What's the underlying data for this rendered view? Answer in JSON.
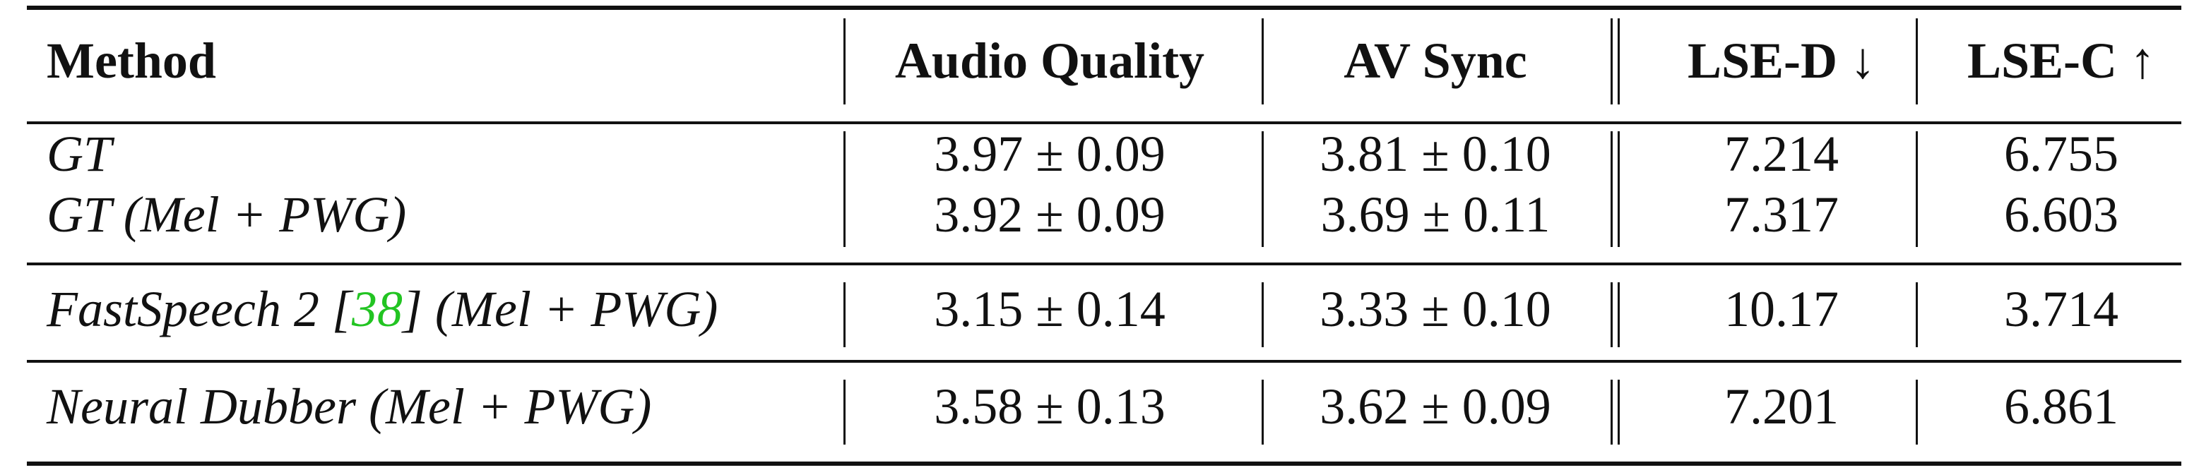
{
  "table": {
    "headers": [
      "Method",
      "Audio Quality",
      "AV Sync",
      "LSE-D ↓",
      "LSE-C ↑"
    ],
    "groups": [
      {
        "rows": [
          {
            "method": "GT",
            "audio_quality": "3.97 ± 0.09",
            "av_sync": "3.81 ± 0.10",
            "lse_d": "7.214",
            "lse_c": "6.755"
          },
          {
            "method": "GT (Mel + PWG)",
            "audio_quality": "3.92 ± 0.09",
            "av_sync": "3.69 ± 0.11",
            "lse_d": "7.317",
            "lse_c": "6.603"
          }
        ]
      },
      {
        "rows": [
          {
            "method_prefix": "FastSpeech 2 [",
            "citation": "38",
            "method_suffix": "] (Mel + PWG)",
            "audio_quality": "3.15 ± 0.14",
            "av_sync": "3.33 ± 0.10",
            "lse_d": "10.17",
            "lse_c": "3.714"
          }
        ]
      },
      {
        "rows": [
          {
            "method": "Neural Dubber (Mel + PWG)",
            "audio_quality": "3.58 ± 0.13",
            "av_sync": "3.62 ± 0.09",
            "lse_d": "7.201",
            "lse_c": "6.861"
          }
        ]
      }
    ],
    "citation_color": "#22c422"
  }
}
